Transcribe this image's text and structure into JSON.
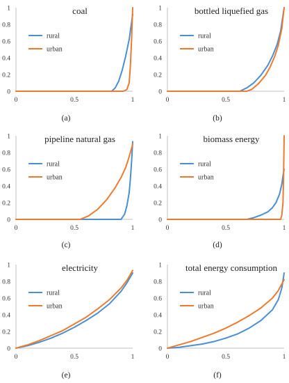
{
  "colors": {
    "rural": "#4a8fd3",
    "urban": "#ec7b30",
    "axis": "#bfbfbf"
  },
  "chart_data": [
    {
      "type": "line",
      "caption": "(a)",
      "title": "coal",
      "legend_position": "top-left",
      "xlim": [
        0,
        1
      ],
      "ylim": [
        0,
        1
      ],
      "x_ticks": [
        "0",
        "0.5",
        "1"
      ],
      "y_ticks": [
        "0",
        "0.2",
        "0.4",
        "0.6",
        "0.8",
        "1"
      ],
      "series": [
        {
          "name": "rural",
          "x": [
            0,
            0.82,
            0.85,
            0.88,
            0.91,
            0.94,
            0.97,
            1.0
          ],
          "y": [
            0,
            0,
            0.04,
            0.12,
            0.25,
            0.42,
            0.62,
            0.92
          ]
        },
        {
          "name": "urban",
          "x": [
            0,
            0.92,
            0.95,
            0.97,
            0.98,
            0.99,
            1.0
          ],
          "y": [
            0,
            0,
            0.02,
            0.1,
            0.3,
            0.6,
            1.0
          ]
        }
      ]
    },
    {
      "type": "line",
      "caption": "(b)",
      "title": "bottled liquefied gas",
      "legend_position": "top-left",
      "xlim": [
        0,
        1
      ],
      "ylim": [
        0,
        1
      ],
      "x_ticks": [
        "0",
        "0.5",
        "1"
      ],
      "y_ticks": [
        "0",
        "0.2",
        "0.4",
        "0.6",
        "0.8",
        "1"
      ],
      "series": [
        {
          "name": "rural",
          "x": [
            0,
            0.62,
            0.68,
            0.74,
            0.8,
            0.86,
            0.9,
            0.94,
            0.97,
            1.0
          ],
          "y": [
            0,
            0,
            0.04,
            0.1,
            0.19,
            0.31,
            0.42,
            0.56,
            0.72,
            1.0
          ]
        },
        {
          "name": "urban",
          "x": [
            0,
            0.68,
            0.72,
            0.78,
            0.84,
            0.88,
            0.92,
            0.95,
            0.98,
            1.0
          ],
          "y": [
            0,
            0,
            0.02,
            0.09,
            0.19,
            0.29,
            0.42,
            0.55,
            0.75,
            1.0
          ]
        }
      ]
    },
    {
      "type": "line",
      "caption": "(c)",
      "title": "pipeline natural gas",
      "legend_position": "top-left",
      "xlim": [
        0,
        1
      ],
      "ylim": [
        0,
        1
      ],
      "x_ticks": [
        "0",
        "0.5",
        "1"
      ],
      "y_ticks": [
        "0",
        "0.2",
        "0.4",
        "0.6",
        "0.8",
        "1"
      ],
      "series": [
        {
          "name": "rural",
          "x": [
            0,
            0.9,
            0.93,
            0.95,
            0.97,
            0.98,
            0.99,
            1.0
          ],
          "y": [
            0,
            0,
            0.06,
            0.16,
            0.32,
            0.48,
            0.68,
            0.93
          ]
        },
        {
          "name": "urban",
          "x": [
            0,
            0.55,
            0.62,
            0.7,
            0.78,
            0.85,
            0.9,
            0.94,
            0.97,
            1.0
          ],
          "y": [
            0,
            0,
            0.04,
            0.12,
            0.24,
            0.38,
            0.5,
            0.62,
            0.75,
            0.9
          ]
        }
      ]
    },
    {
      "type": "line",
      "caption": "(d)",
      "title": "biomass energy",
      "legend_position": "top-left",
      "xlim": [
        0,
        1
      ],
      "ylim": [
        0,
        1
      ],
      "x_ticks": [
        "0",
        "0.5",
        "1"
      ],
      "y_ticks": [
        "0",
        "0.2",
        "0.4",
        "0.6",
        "0.8",
        "1"
      ],
      "series": [
        {
          "name": "rural",
          "x": [
            0,
            0.68,
            0.74,
            0.8,
            0.86,
            0.9,
            0.93,
            0.96,
            0.98,
            0.99,
            1.0
          ],
          "y": [
            0,
            0,
            0.02,
            0.05,
            0.09,
            0.14,
            0.2,
            0.3,
            0.42,
            0.52,
            0.6
          ]
        },
        {
          "name": "urban",
          "x": [
            0,
            0.97,
            0.98,
            0.99,
            0.995,
            1.0
          ],
          "y": [
            0,
            0,
            0.05,
            0.2,
            0.5,
            1.0
          ]
        }
      ]
    },
    {
      "type": "line",
      "caption": "(e)",
      "title": "electricity",
      "legend_position": "top-left",
      "xlim": [
        0,
        1
      ],
      "ylim": [
        0,
        1
      ],
      "x_ticks": [
        "0",
        "0.5",
        "1"
      ],
      "y_ticks": [
        "0",
        "0.2",
        "0.4",
        "0.6",
        "0.8",
        "1"
      ],
      "series": [
        {
          "name": "rural",
          "x": [
            0,
            0.1,
            0.2,
            0.3,
            0.4,
            0.5,
            0.6,
            0.7,
            0.8,
            0.9,
            0.95,
            1.0
          ],
          "y": [
            0,
            0.03,
            0.07,
            0.12,
            0.18,
            0.25,
            0.33,
            0.42,
            0.53,
            0.68,
            0.78,
            0.9
          ]
        },
        {
          "name": "urban",
          "x": [
            0,
            0.1,
            0.2,
            0.3,
            0.4,
            0.5,
            0.6,
            0.7,
            0.8,
            0.9,
            0.95,
            1.0
          ],
          "y": [
            0,
            0.04,
            0.09,
            0.15,
            0.21,
            0.29,
            0.37,
            0.47,
            0.58,
            0.72,
            0.81,
            0.93
          ]
        }
      ]
    },
    {
      "type": "line",
      "caption": "(f)",
      "title": "total energy consumption",
      "legend_position": "top-left",
      "xlim": [
        0,
        1
      ],
      "ylim": [
        0,
        1
      ],
      "x_ticks": [
        "0",
        "0.5",
        "1"
      ],
      "y_ticks": [
        "0",
        "0.2",
        "0.4",
        "0.6",
        "0.8",
        "1"
      ],
      "series": [
        {
          "name": "rural",
          "x": [
            0,
            0.1,
            0.2,
            0.3,
            0.4,
            0.5,
            0.6,
            0.7,
            0.8,
            0.9,
            0.95,
            0.98,
            1.0
          ],
          "y": [
            0,
            0.01,
            0.03,
            0.05,
            0.08,
            0.12,
            0.17,
            0.24,
            0.33,
            0.46,
            0.58,
            0.72,
            0.9
          ]
        },
        {
          "name": "urban",
          "x": [
            0,
            0.1,
            0.2,
            0.3,
            0.4,
            0.5,
            0.6,
            0.7,
            0.8,
            0.9,
            0.95,
            1.0
          ],
          "y": [
            0,
            0.04,
            0.08,
            0.13,
            0.18,
            0.24,
            0.31,
            0.39,
            0.48,
            0.6,
            0.69,
            0.82
          ]
        }
      ]
    }
  ]
}
